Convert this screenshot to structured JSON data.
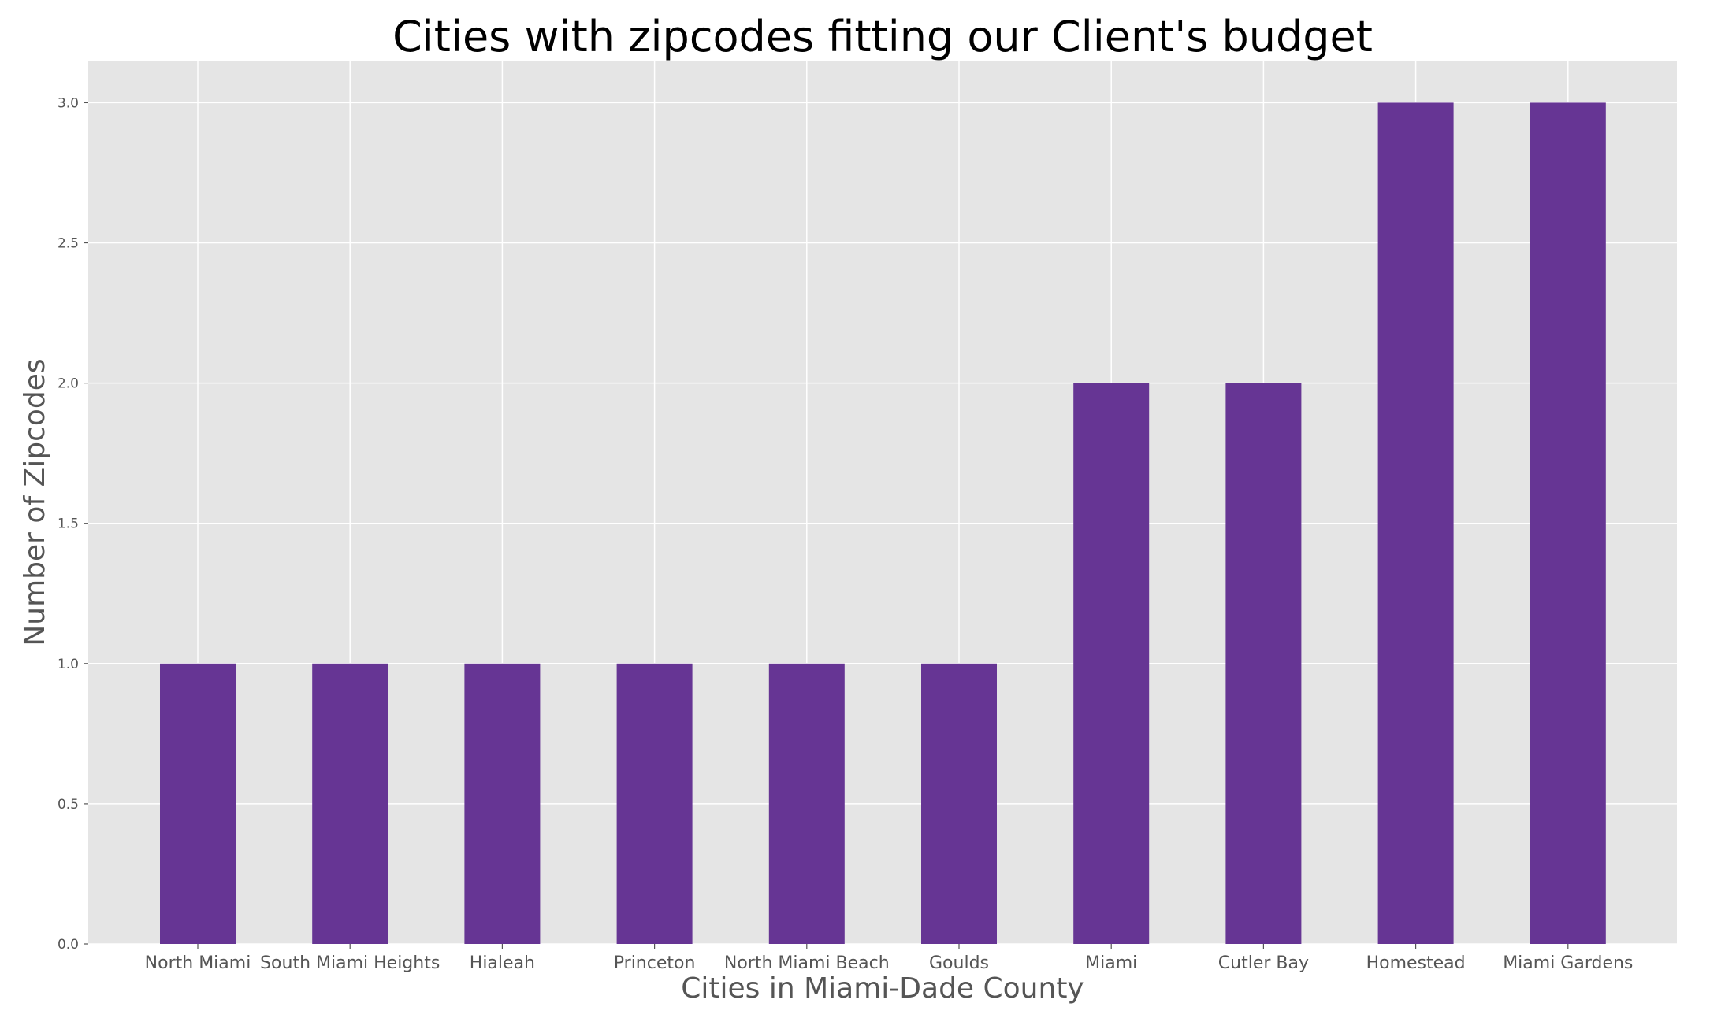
{
  "chart_data": {
    "type": "bar",
    "title": "Cities with zipcodes fitting our Client's budget",
    "xlabel": "Cities in Miami-Dade County",
    "ylabel": "Number of Zipcodes",
    "categories": [
      "North Miami",
      "South Miami Heights",
      "Hialeah",
      "Princeton",
      "North Miami Beach",
      "Goulds",
      "Miami",
      "Cutler Bay",
      "Homestead",
      "Miami Gardens"
    ],
    "values": [
      1,
      1,
      1,
      1,
      1,
      1,
      2,
      2,
      3,
      3
    ],
    "ylim": [
      0,
      3.15
    ],
    "yticks": [
      "0.0",
      "0.5",
      "1.0",
      "1.5",
      "2.0",
      "2.5",
      "3.0"
    ],
    "grid": true,
    "legend": "none",
    "colors": {
      "bar": "#663594",
      "plot_background": "#e5e5e5",
      "grid": "#ffffff"
    }
  }
}
